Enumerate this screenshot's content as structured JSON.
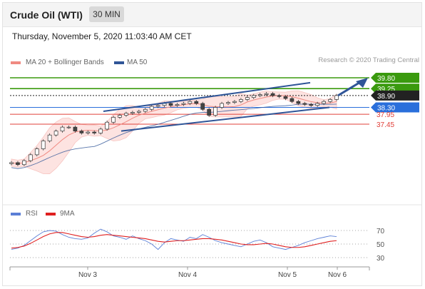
{
  "header": {
    "title": "Crude Oil (WTI)",
    "timeframe": "30 MIN"
  },
  "datetime": "Thursday, November 5, 2020 11:03:40 AM CET",
  "legend": {
    "ma20_label": "MA 20 + Bollinger Bands",
    "ma50_label": "MA 50",
    "ma20_color": "#f08a82",
    "ma50_color": "#2f5597",
    "credit": "Research © 2020 Trading Central"
  },
  "rsi_legend": {
    "rsi_label": "RSI",
    "rsi_color": "#5b7fd6",
    "ma9_label": "9MA",
    "ma9_color": "#e02020"
  },
  "chart_data": [
    {
      "type": "line",
      "x_labels": [
        "Nov 3",
        "Nov 4",
        "Nov 5",
        "Nov 6"
      ],
      "price_levels": [
        {
          "label": "39.80",
          "type": "target",
          "color": "#3a9a0e"
        },
        {
          "label": "39.25",
          "type": "resistance",
          "color": "#3a9a0e"
        },
        {
          "label": "38.90",
          "type": "last_price",
          "color": "#222222"
        },
        {
          "label": "38.30",
          "type": "pivot",
          "color": "#2a6fdb"
        },
        {
          "label": "37.95",
          "type": "support",
          "color": "#e0403a"
        },
        {
          "label": "37.45",
          "type": "support",
          "color": "#e0403a"
        }
      ],
      "close_series": [
        35.5,
        35.4,
        35.6,
        35.9,
        36.2,
        36.6,
        36.9,
        37.1,
        37.3,
        37.3,
        37.1,
        37.0,
        37.05,
        37.0,
        37.2,
        37.55,
        37.8,
        37.9,
        38.0,
        38.05,
        38.1,
        38.2,
        38.35,
        38.4,
        38.5,
        38.4,
        38.45,
        38.5,
        38.6,
        38.5,
        38.2,
        37.9,
        38.3,
        38.5,
        38.55,
        38.6,
        38.7,
        38.8,
        38.9,
        38.95,
        39.0,
        38.9,
        38.85,
        38.75,
        38.6,
        38.5,
        38.45,
        38.4,
        38.5,
        38.6,
        38.7,
        38.9
      ],
      "channel": "ascending",
      "forecast_arrow": "up to 39.80"
    },
    {
      "type": "line",
      "title": "RSI",
      "y_ticks": [
        70,
        50,
        30
      ],
      "series": [
        {
          "name": "RSI",
          "values": [
            42,
            44,
            48,
            55,
            62,
            68,
            70,
            69,
            64,
            60,
            58,
            57,
            59,
            66,
            72,
            68,
            62,
            60,
            57,
            62,
            58,
            55,
            50,
            42,
            52,
            58,
            56,
            54,
            60,
            58,
            64,
            60,
            55,
            52,
            50,
            48,
            46,
            50,
            54,
            56,
            52,
            46,
            44,
            42,
            45,
            48,
            52,
            55,
            58,
            60,
            62,
            61
          ]
        },
        {
          "name": "9MA",
          "values": [
            44,
            45,
            47,
            51,
            56,
            61,
            65,
            67,
            67,
            65,
            63,
            61,
            60,
            61,
            63,
            64,
            63,
            62,
            61,
            60,
            59,
            58,
            56,
            54,
            53,
            54,
            55,
            55,
            56,
            57,
            58,
            58,
            57,
            56,
            54,
            52,
            50,
            49,
            49,
            50,
            51,
            50,
            48,
            46,
            45,
            45,
            46,
            48,
            50,
            52,
            54,
            55
          ]
        }
      ]
    }
  ]
}
